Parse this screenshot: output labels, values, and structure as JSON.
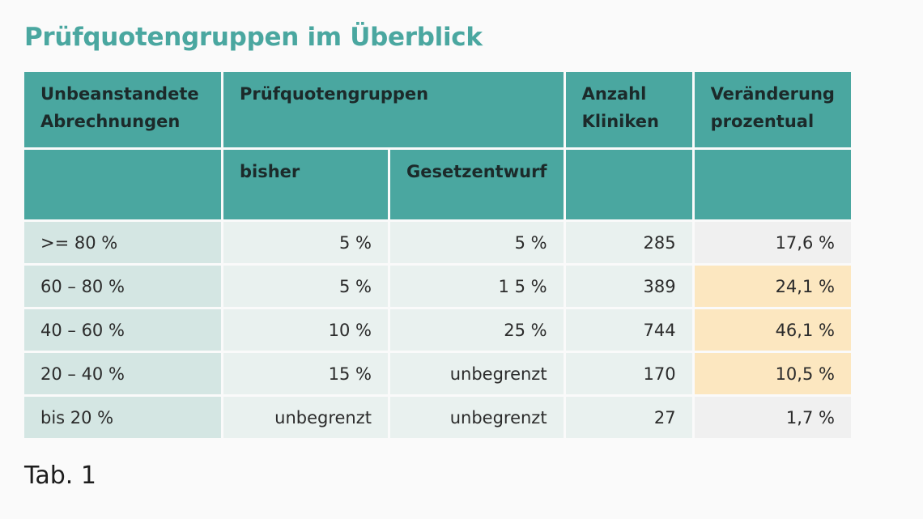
{
  "title": "Prüfquotengruppen im Überblick",
  "table": {
    "headers": {
      "col1_line1": "Unbeanstandete",
      "col1_line2": "Abrechnungen",
      "group": "Prüfquotengruppen",
      "col4_line1": "Anzahl",
      "col4_line2": "Kliniken",
      "col5_line1": "Veränderung",
      "col5_line2": "prozentual",
      "sub_bisher": "bisher",
      "sub_entwurf": "Gesetzentwurf"
    },
    "rows": [
      {
        "range": ">= 80 %",
        "bisher": "5 %",
        "entwurf": "5 %",
        "kliniken": "285",
        "veraenderung": "17,6 %",
        "highlight": false
      },
      {
        "range": "60 – 80 %",
        "bisher": "5 %",
        "entwurf": "1 5 %",
        "kliniken": "389",
        "veraenderung": "24,1 %",
        "highlight": true
      },
      {
        "range": "40 – 60 %",
        "bisher": "10 %",
        "entwurf": "25 %",
        "kliniken": "744",
        "veraenderung": "46,1 %",
        "highlight": true
      },
      {
        "range": "20 – 40 %",
        "bisher": "15 %",
        "entwurf": "unbegrenzt",
        "kliniken": "170",
        "veraenderung": "10,5 %",
        "highlight": true
      },
      {
        "range": "bis 20 %",
        "bisher": "unbegrenzt",
        "entwurf": "unbegrenzt",
        "kliniken": "27",
        "veraenderung": "1,7 %",
        "highlight": false
      }
    ]
  },
  "caption": "Tab. 1",
  "colors": {
    "accent": "#4aa7a0",
    "highlight": "#fce7c0",
    "first_col": "#d4e6e3",
    "cell": "#e9f1ef"
  }
}
